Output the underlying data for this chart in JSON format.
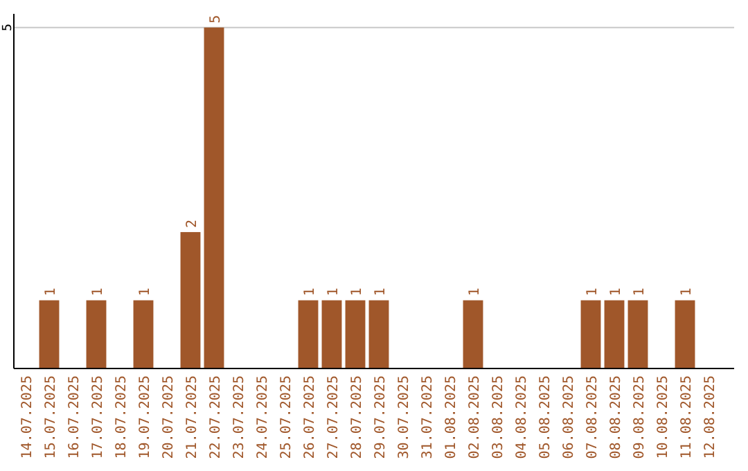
{
  "chart_data": {
    "type": "bar",
    "categories": [
      "14.07.2025",
      "15.07.2025",
      "16.07.2025",
      "17.07.2025",
      "18.07.2025",
      "19.07.2025",
      "20.07.2025",
      "21.07.2025",
      "22.07.2025",
      "23.07.2025",
      "24.07.2025",
      "25.07.2025",
      "26.07.2025",
      "27.07.2025",
      "28.07.2025",
      "29.07.2025",
      "30.07.2025",
      "31.07.2025",
      "01.08.2025",
      "02.08.2025",
      "03.08.2025",
      "04.08.2025",
      "05.08.2025",
      "06.08.2025",
      "07.08.2025",
      "08.08.2025",
      "09.08.2025",
      "10.08.2025",
      "11.08.2025",
      "12.08.2025"
    ],
    "values": [
      0,
      1,
      0,
      1,
      0,
      1,
      0,
      2,
      5,
      0,
      0,
      0,
      1,
      1,
      1,
      1,
      0,
      0,
      0,
      1,
      0,
      0,
      0,
      0,
      1,
      1,
      1,
      0,
      1,
      0
    ],
    "value_labels": [
      null,
      "1",
      null,
      "1",
      null,
      "1",
      null,
      "2",
      "5",
      null,
      null,
      null,
      "1",
      "1",
      "1",
      "1",
      null,
      null,
      null,
      "1",
      null,
      null,
      null,
      null,
      "1",
      "1",
      "1",
      null,
      "1",
      null
    ],
    "color": "#a0572a",
    "ylim": [
      0,
      5.2
    ],
    "yticks": [
      5
    ],
    "grid": "y"
  }
}
